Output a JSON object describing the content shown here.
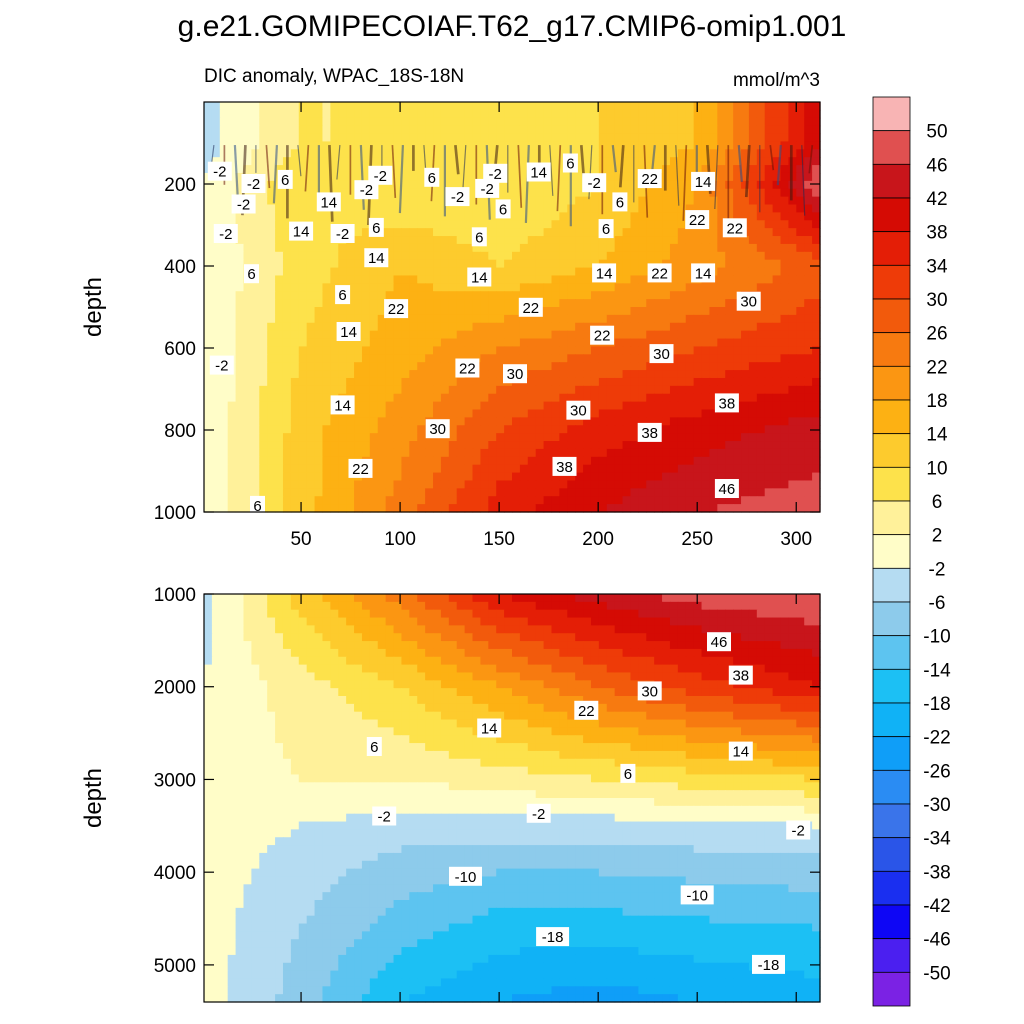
{
  "figure": {
    "title": "g.e21.GOMIPECOIAF.T62_g17.CMIP6-omip1.001",
    "left_label": "DIC anomaly, WPAC_18S-18N",
    "units_label": "mmol/m^3"
  },
  "colors": {
    "palette": [
      "#7b22e4",
      "#4b1ff0",
      "#0e06f5",
      "#1a2ff0",
      "#2a55e8",
      "#3a74ea",
      "#2a8cf3",
      "#0f9ef8",
      "#10b2f6",
      "#1cc0f4",
      "#5dc4f0",
      "#8dcbeb",
      "#b5dcf2",
      "#fffdc8",
      "#fff19a",
      "#fde24b",
      "#fdcb2d",
      "#fdb113",
      "#fb9612",
      "#f77a10",
      "#f25a0c",
      "#ee3b08",
      "#e41e06",
      "#d50b04",
      "#c8151b",
      "#e05050",
      "#f8b4b4"
    ]
  },
  "chart_data": [
    {
      "type": "heatmap",
      "panel": "upper",
      "title": "DIC anomaly, WPAC_18S-18N",
      "units": "mmol/m^3",
      "xlabel": "",
      "ylabel": "depth",
      "xlim": [
        1,
        312
      ],
      "ylim": [
        1000,
        0
      ],
      "xticks": [
        50,
        100,
        150,
        200,
        250,
        300
      ],
      "yticks": [
        200,
        400,
        600,
        800,
        1000
      ],
      "x_stations": [
        0,
        50,
        100,
        150,
        200,
        250,
        312
      ],
      "depth_rows": [
        {
          "depth": 100,
          "values": [
            -4,
            6,
            6,
            6,
            10,
            14,
            42
          ]
        },
        {
          "depth": 200,
          "values": [
            -2,
            10,
            6,
            6,
            10,
            18,
            50
          ]
        },
        {
          "depth": 400,
          "values": [
            -2,
            8,
            14,
            10,
            14,
            20,
            28
          ]
        },
        {
          "depth": 600,
          "values": [
            -2,
            10,
            16,
            22,
            26,
            30,
            34
          ]
        },
        {
          "depth": 800,
          "values": [
            -2,
            12,
            20,
            30,
            36,
            40,
            44
          ]
        },
        {
          "depth": 1000,
          "values": [
            -2,
            12,
            24,
            36,
            42,
            46,
            48
          ]
        }
      ],
      "contour_labels": [
        {
          "text": "-2",
          "x": 9,
          "y": 170
        },
        {
          "text": "-2",
          "x": 26,
          "y": 200
        },
        {
          "text": "6",
          "x": 42,
          "y": 190
        },
        {
          "text": "-2",
          "x": 21,
          "y": 250
        },
        {
          "text": "14",
          "x": 64,
          "y": 245
        },
        {
          "text": "-2",
          "x": 83,
          "y": 215
        },
        {
          "text": "-2",
          "x": 90,
          "y": 180
        },
        {
          "text": "6",
          "x": 116,
          "y": 185
        },
        {
          "text": "-2",
          "x": 148,
          "y": 175
        },
        {
          "text": "14",
          "x": 170,
          "y": 172
        },
        {
          "text": "6",
          "x": 186,
          "y": 150
        },
        {
          "text": "-2",
          "x": 198,
          "y": 198
        },
        {
          "text": "22",
          "x": 226,
          "y": 188
        },
        {
          "text": "14",
          "x": 253,
          "y": 195
        },
        {
          "text": "-2",
          "x": 144,
          "y": 212
        },
        {
          "text": "-2",
          "x": 129,
          "y": 232
        },
        {
          "text": "6",
          "x": 152,
          "y": 262
        },
        {
          "text": "6",
          "x": 211,
          "y": 245
        },
        {
          "text": "-2",
          "x": 12,
          "y": 322
        },
        {
          "text": "14",
          "x": 50,
          "y": 316
        },
        {
          "text": "-2",
          "x": 71,
          "y": 322
        },
        {
          "text": "6",
          "x": 88,
          "y": 307
        },
        {
          "text": "6",
          "x": 140,
          "y": 330
        },
        {
          "text": "6",
          "x": 204,
          "y": 310
        },
        {
          "text": "22",
          "x": 250,
          "y": 288
        },
        {
          "text": "22",
          "x": 269,
          "y": 308
        },
        {
          "text": "6",
          "x": 25,
          "y": 420
        },
        {
          "text": "14",
          "x": 88,
          "y": 381
        },
        {
          "text": "14",
          "x": 140,
          "y": 428
        },
        {
          "text": "14",
          "x": 203,
          "y": 418
        },
        {
          "text": "22",
          "x": 231,
          "y": 418
        },
        {
          "text": "14",
          "x": 253,
          "y": 418
        },
        {
          "text": "6",
          "x": 71,
          "y": 471
        },
        {
          "text": "22",
          "x": 98,
          "y": 505
        },
        {
          "text": "22",
          "x": 166,
          "y": 502
        },
        {
          "text": "30",
          "x": 276,
          "y": 487
        },
        {
          "text": "14",
          "x": 74,
          "y": 561
        },
        {
          "text": "22",
          "x": 202,
          "y": 570
        },
        {
          "text": "30",
          "x": 232,
          "y": 615
        },
        {
          "text": "-2",
          "x": 10,
          "y": 643
        },
        {
          "text": "22",
          "x": 134,
          "y": 650
        },
        {
          "text": "30",
          "x": 158,
          "y": 664
        },
        {
          "text": "14",
          "x": 71,
          "y": 740
        },
        {
          "text": "30",
          "x": 190,
          "y": 753
        },
        {
          "text": "38",
          "x": 265,
          "y": 735
        },
        {
          "text": "30",
          "x": 119,
          "y": 798
        },
        {
          "text": "38",
          "x": 226,
          "y": 807
        },
        {
          "text": "22",
          "x": 80,
          "y": 895
        },
        {
          "text": "38",
          "x": 183,
          "y": 890
        },
        {
          "text": "46",
          "x": 265,
          "y": 944
        },
        {
          "text": "6",
          "x": 28,
          "y": 985
        }
      ]
    },
    {
      "type": "heatmap",
      "panel": "lower",
      "xlabel": "",
      "ylabel": "depth",
      "xlim": [
        1,
        312
      ],
      "ylim": [
        5400,
        1000
      ],
      "yticks": [
        1000,
        2000,
        3000,
        4000,
        5000
      ],
      "x_stations": [
        0,
        50,
        100,
        150,
        200,
        250,
        312
      ],
      "depth_rows": [
        {
          "depth": 1000,
          "values": [
            -4,
            12,
            24,
            38,
            44,
            48,
            50
          ]
        },
        {
          "depth": 2000,
          "values": [
            -2,
            4,
            10,
            18,
            26,
            32,
            38
          ]
        },
        {
          "depth": 3000,
          "values": [
            0,
            2,
            2,
            4,
            6,
            8,
            10
          ]
        },
        {
          "depth": 3500,
          "values": [
            0,
            -2,
            -4,
            -4,
            -4,
            -3,
            -2
          ]
        },
        {
          "depth": 4000,
          "values": [
            0,
            -4,
            -8,
            -10,
            -10,
            -9,
            -8
          ]
        },
        {
          "depth": 4600,
          "values": [
            0,
            -6,
            -12,
            -16,
            -16,
            -15,
            -14
          ]
        },
        {
          "depth": 5400,
          "values": [
            0,
            -8,
            -18,
            -22,
            -24,
            -22,
            -20
          ]
        }
      ],
      "contour_labels": [
        {
          "text": "46",
          "x": 261,
          "y": 1520
        },
        {
          "text": "38",
          "x": 272,
          "y": 1880
        },
        {
          "text": "30",
          "x": 226,
          "y": 2050
        },
        {
          "text": "22",
          "x": 194,
          "y": 2260
        },
        {
          "text": "14",
          "x": 145,
          "y": 2450
        },
        {
          "text": "14",
          "x": 272,
          "y": 2700
        },
        {
          "text": "6",
          "x": 87,
          "y": 2650
        },
        {
          "text": "6",
          "x": 215,
          "y": 2940
        },
        {
          "text": "-2",
          "x": 92,
          "y": 3400
        },
        {
          "text": "-2",
          "x": 170,
          "y": 3370
        },
        {
          "text": "-2",
          "x": 301,
          "y": 3550
        },
        {
          "text": "-10",
          "x": 133,
          "y": 4050
        },
        {
          "text": "-10",
          "x": 250,
          "y": 4250
        },
        {
          "text": "-18",
          "x": 177,
          "y": 4700
        },
        {
          "text": "-18",
          "x": 286,
          "y": 5000
        }
      ]
    }
  ],
  "colorbar": {
    "labels": [
      "-50",
      "-46",
      "-42",
      "-38",
      "-34",
      "-30",
      "-26",
      "-22",
      "-18",
      "-14",
      "-10",
      "-6",
      "-2",
      "2",
      "6",
      "10",
      "14",
      "18",
      "22",
      "26",
      "30",
      "34",
      "38",
      "42",
      "46",
      "50"
    ]
  }
}
